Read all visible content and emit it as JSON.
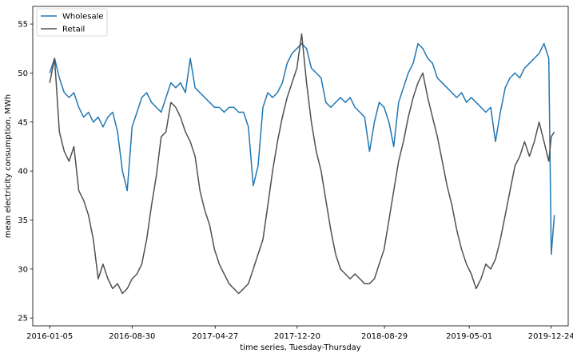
{
  "chart_data": {
    "type": "line",
    "title": "",
    "xlabel": "time series, Tuesday-Thursday",
    "ylabel": "mean electricity consumption, MWh",
    "x_tick_labels": [
      "2016-01-05",
      "2016-08-30",
      "2017-04-27",
      "2017-12-20",
      "2018-08-29",
      "2019-05-01",
      "2019-12-24"
    ],
    "x_ticks": [
      "2016-01-05",
      "2016-08-30",
      "2017-04-27",
      "2017-12-20",
      "2018-08-29",
      "2019-05-01",
      "2019-12-24"
    ],
    "xlim": [
      "2015-11-17",
      "2020-02-11"
    ],
    "y_ticks": [
      25,
      30,
      35,
      40,
      45,
      50,
      55
    ],
    "ylim": [
      24.2,
      56.8
    ],
    "grid": false,
    "legend_position": "top-left",
    "series": [
      {
        "name": "Wholesale",
        "color": "#1f77b4",
        "points": [
          [
            "2016-01-05",
            50.0
          ],
          [
            "2016-01-19",
            51.5
          ],
          [
            "2016-02-02",
            49.5
          ],
          [
            "2016-02-16",
            48.0
          ],
          [
            "2016-03-01",
            47.5
          ],
          [
            "2016-03-15",
            48.0
          ],
          [
            "2016-03-29",
            46.5
          ],
          [
            "2016-04-12",
            45.5
          ],
          [
            "2016-04-26",
            46.0
          ],
          [
            "2016-05-10",
            45.0
          ],
          [
            "2016-05-24",
            45.5
          ],
          [
            "2016-06-07",
            44.5
          ],
          [
            "2016-06-21",
            45.5
          ],
          [
            "2016-07-05",
            46.0
          ],
          [
            "2016-07-19",
            44.0
          ],
          [
            "2016-08-02",
            40.0
          ],
          [
            "2016-08-16",
            38.0
          ],
          [
            "2016-08-30",
            44.5
          ],
          [
            "2016-09-13",
            46.0
          ],
          [
            "2016-09-27",
            47.5
          ],
          [
            "2016-10-11",
            48.0
          ],
          [
            "2016-10-25",
            47.0
          ],
          [
            "2016-11-08",
            46.5
          ],
          [
            "2016-11-22",
            46.0
          ],
          [
            "2016-12-06",
            47.5
          ],
          [
            "2016-12-20",
            49.0
          ],
          [
            "2017-01-03",
            48.5
          ],
          [
            "2017-01-17",
            49.0
          ],
          [
            "2017-01-31",
            48.0
          ],
          [
            "2017-02-14",
            51.5
          ],
          [
            "2017-02-28",
            48.5
          ],
          [
            "2017-03-14",
            48.0
          ],
          [
            "2017-03-28",
            47.5
          ],
          [
            "2017-04-11",
            47.0
          ],
          [
            "2017-04-25",
            46.5
          ],
          [
            "2017-05-09",
            46.5
          ],
          [
            "2017-05-23",
            46.0
          ],
          [
            "2017-06-06",
            46.5
          ],
          [
            "2017-06-20",
            46.5
          ],
          [
            "2017-07-04",
            46.0
          ],
          [
            "2017-07-18",
            46.0
          ],
          [
            "2017-08-01",
            44.5
          ],
          [
            "2017-08-15",
            38.5
          ],
          [
            "2017-08-29",
            40.5
          ],
          [
            "2017-09-12",
            46.5
          ],
          [
            "2017-09-26",
            48.0
          ],
          [
            "2017-10-10",
            47.5
          ],
          [
            "2017-10-24",
            48.0
          ],
          [
            "2017-11-07",
            49.0
          ],
          [
            "2017-11-21",
            51.0
          ],
          [
            "2017-12-05",
            52.0
          ],
          [
            "2017-12-19",
            52.5
          ],
          [
            "2018-01-02",
            53.0
          ],
          [
            "2018-01-16",
            52.5
          ],
          [
            "2018-01-30",
            50.5
          ],
          [
            "2018-02-13",
            50.0
          ],
          [
            "2018-02-27",
            49.5
          ],
          [
            "2018-03-13",
            47.0
          ],
          [
            "2018-03-27",
            46.5
          ],
          [
            "2018-04-10",
            47.0
          ],
          [
            "2018-04-24",
            47.5
          ],
          [
            "2018-05-08",
            47.0
          ],
          [
            "2018-05-22",
            47.5
          ],
          [
            "2018-06-05",
            46.5
          ],
          [
            "2018-06-19",
            46.0
          ],
          [
            "2018-07-03",
            45.5
          ],
          [
            "2018-07-17",
            42.0
          ],
          [
            "2018-07-31",
            45.0
          ],
          [
            "2018-08-14",
            47.0
          ],
          [
            "2018-08-28",
            46.5
          ],
          [
            "2018-09-11",
            45.0
          ],
          [
            "2018-09-25",
            42.5
          ],
          [
            "2018-10-09",
            47.0
          ],
          [
            "2018-10-23",
            48.5
          ],
          [
            "2018-11-06",
            50.0
          ],
          [
            "2018-11-20",
            51.0
          ],
          [
            "2018-12-04",
            53.0
          ],
          [
            "2018-12-18",
            52.5
          ],
          [
            "2019-01-01",
            51.5
          ],
          [
            "2019-01-15",
            51.0
          ],
          [
            "2019-01-29",
            49.5
          ],
          [
            "2019-02-12",
            49.0
          ],
          [
            "2019-02-26",
            48.5
          ],
          [
            "2019-03-12",
            48.0
          ],
          [
            "2019-03-26",
            47.5
          ],
          [
            "2019-04-09",
            48.0
          ],
          [
            "2019-04-23",
            47.0
          ],
          [
            "2019-05-07",
            47.5
          ],
          [
            "2019-05-21",
            47.0
          ],
          [
            "2019-06-04",
            46.5
          ],
          [
            "2019-06-18",
            46.0
          ],
          [
            "2019-07-02",
            46.5
          ],
          [
            "2019-07-16",
            43.0
          ],
          [
            "2019-07-30",
            46.0
          ],
          [
            "2019-08-13",
            48.5
          ],
          [
            "2019-08-27",
            49.5
          ],
          [
            "2019-09-10",
            50.0
          ],
          [
            "2019-09-24",
            49.5
          ],
          [
            "2019-10-08",
            50.5
          ],
          [
            "2019-10-22",
            51.0
          ],
          [
            "2019-11-05",
            51.5
          ],
          [
            "2019-11-19",
            52.0
          ],
          [
            "2019-12-03",
            53.0
          ],
          [
            "2019-12-17",
            51.5
          ],
          [
            "2019-12-24",
            31.5
          ],
          [
            "2020-01-02",
            35.5
          ]
        ]
      },
      {
        "name": "Retail",
        "color": "#505050",
        "points": [
          [
            "2016-01-05",
            49.0
          ],
          [
            "2016-01-19",
            51.5
          ],
          [
            "2016-02-02",
            44.0
          ],
          [
            "2016-02-16",
            42.0
          ],
          [
            "2016-03-01",
            41.0
          ],
          [
            "2016-03-15",
            42.5
          ],
          [
            "2016-03-29",
            38.0
          ],
          [
            "2016-04-12",
            37.0
          ],
          [
            "2016-04-26",
            35.5
          ],
          [
            "2016-05-10",
            33.0
          ],
          [
            "2016-05-24",
            29.0
          ],
          [
            "2016-06-07",
            30.5
          ],
          [
            "2016-06-21",
            29.0
          ],
          [
            "2016-07-05",
            28.0
          ],
          [
            "2016-07-19",
            28.5
          ],
          [
            "2016-08-02",
            27.5
          ],
          [
            "2016-08-16",
            28.0
          ],
          [
            "2016-08-30",
            29.0
          ],
          [
            "2016-09-13",
            29.5
          ],
          [
            "2016-09-27",
            30.5
          ],
          [
            "2016-10-11",
            33.0
          ],
          [
            "2016-10-25",
            36.5
          ],
          [
            "2016-11-08",
            39.5
          ],
          [
            "2016-11-22",
            43.5
          ],
          [
            "2016-12-06",
            44.0
          ],
          [
            "2016-12-20",
            47.0
          ],
          [
            "2017-01-03",
            46.5
          ],
          [
            "2017-01-17",
            45.5
          ],
          [
            "2017-01-31",
            44.0
          ],
          [
            "2017-02-14",
            43.0
          ],
          [
            "2017-02-28",
            41.5
          ],
          [
            "2017-03-14",
            38.0
          ],
          [
            "2017-03-28",
            36.0
          ],
          [
            "2017-04-11",
            34.5
          ],
          [
            "2017-04-25",
            32.0
          ],
          [
            "2017-05-09",
            30.5
          ],
          [
            "2017-05-23",
            29.5
          ],
          [
            "2017-06-06",
            28.5
          ],
          [
            "2017-06-20",
            28.0
          ],
          [
            "2017-07-04",
            27.5
          ],
          [
            "2017-07-18",
            28.0
          ],
          [
            "2017-08-01",
            28.5
          ],
          [
            "2017-08-15",
            30.0
          ],
          [
            "2017-08-29",
            31.5
          ],
          [
            "2017-09-12",
            33.0
          ],
          [
            "2017-09-26",
            36.5
          ],
          [
            "2017-10-10",
            40.0
          ],
          [
            "2017-10-24",
            43.0
          ],
          [
            "2017-11-07",
            45.5
          ],
          [
            "2017-11-21",
            47.5
          ],
          [
            "2017-12-05",
            49.0
          ],
          [
            "2017-12-19",
            50.5
          ],
          [
            "2018-01-02",
            54.0
          ],
          [
            "2018-01-16",
            49.0
          ],
          [
            "2018-01-30",
            45.0
          ],
          [
            "2018-02-13",
            42.0
          ],
          [
            "2018-02-27",
            40.0
          ],
          [
            "2018-03-13",
            37.0
          ],
          [
            "2018-03-27",
            34.0
          ],
          [
            "2018-04-10",
            31.5
          ],
          [
            "2018-04-24",
            30.0
          ],
          [
            "2018-05-08",
            29.5
          ],
          [
            "2018-05-22",
            29.0
          ],
          [
            "2018-06-05",
            29.5
          ],
          [
            "2018-06-19",
            29.0
          ],
          [
            "2018-07-03",
            28.5
          ],
          [
            "2018-07-17",
            28.5
          ],
          [
            "2018-07-31",
            29.0
          ],
          [
            "2018-08-14",
            30.5
          ],
          [
            "2018-08-28",
            32.0
          ],
          [
            "2018-09-11",
            35.0
          ],
          [
            "2018-09-25",
            38.0
          ],
          [
            "2018-10-09",
            41.0
          ],
          [
            "2018-10-23",
            43.0
          ],
          [
            "2018-11-06",
            45.5
          ],
          [
            "2018-11-20",
            47.5
          ],
          [
            "2018-12-04",
            49.0
          ],
          [
            "2018-12-18",
            50.0
          ],
          [
            "2019-01-01",
            47.5
          ],
          [
            "2019-01-15",
            45.5
          ],
          [
            "2019-01-29",
            43.5
          ],
          [
            "2019-02-12",
            41.0
          ],
          [
            "2019-02-26",
            38.5
          ],
          [
            "2019-03-12",
            36.5
          ],
          [
            "2019-03-26",
            34.0
          ],
          [
            "2019-04-09",
            32.0
          ],
          [
            "2019-04-23",
            30.5
          ],
          [
            "2019-05-07",
            29.5
          ],
          [
            "2019-05-21",
            28.0
          ],
          [
            "2019-06-04",
            29.0
          ],
          [
            "2019-06-18",
            30.5
          ],
          [
            "2019-07-02",
            30.0
          ],
          [
            "2019-07-16",
            31.0
          ],
          [
            "2019-07-30",
            33.0
          ],
          [
            "2019-08-13",
            35.5
          ],
          [
            "2019-08-27",
            38.0
          ],
          [
            "2019-09-10",
            40.5
          ],
          [
            "2019-09-24",
            41.5
          ],
          [
            "2019-10-08",
            43.0
          ],
          [
            "2019-10-22",
            41.5
          ],
          [
            "2019-11-05",
            43.0
          ],
          [
            "2019-11-19",
            45.0
          ],
          [
            "2019-12-03",
            43.0
          ],
          [
            "2019-12-17",
            41.0
          ],
          [
            "2019-12-24",
            43.5
          ],
          [
            "2020-01-02",
            44.0
          ]
        ]
      }
    ]
  }
}
